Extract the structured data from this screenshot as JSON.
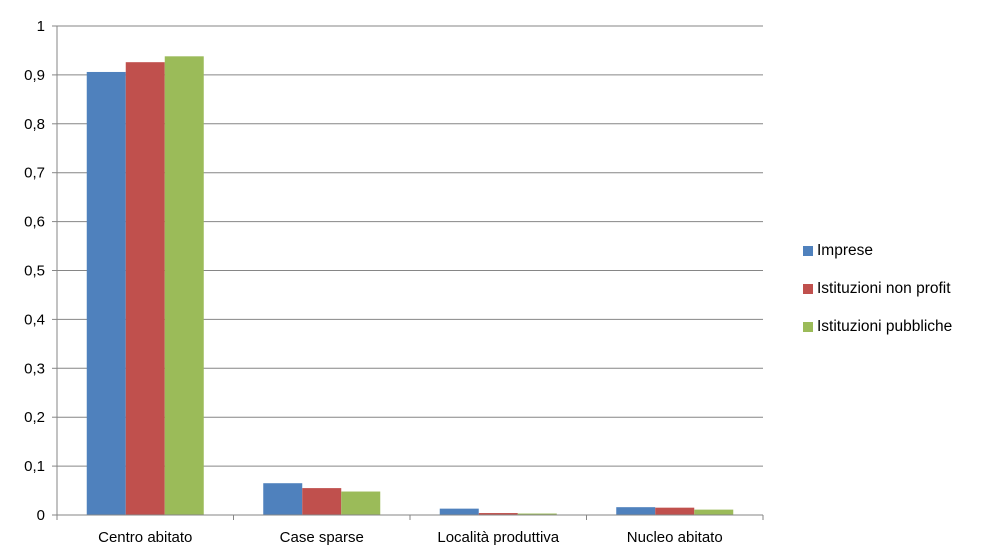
{
  "chart_data": {
    "type": "bar",
    "categories": [
      "Centro abitato",
      "Case sparse",
      "Località produttiva",
      "Nucleo abitato"
    ],
    "series": [
      {
        "name": "Imprese",
        "color": "#4f81bd",
        "values": [
          0.906,
          0.065,
          0.013,
          0.016
        ]
      },
      {
        "name": "Istituzioni non profit",
        "color": "#c0504d",
        "values": [
          0.926,
          0.055,
          0.004,
          0.015
        ]
      },
      {
        "name": "Istituzioni pubbliche",
        "color": "#9bbb59",
        "values": [
          0.938,
          0.048,
          0.003,
          0.011
        ]
      }
    ],
    "ylim": [
      0,
      1
    ],
    "yticks": [
      "0",
      "0,1",
      "0,2",
      "0,3",
      "0,4",
      "0,5",
      "0,6",
      "0,7",
      "0,8",
      "0,9",
      "1"
    ],
    "grid": true,
    "legend_position": "right"
  }
}
